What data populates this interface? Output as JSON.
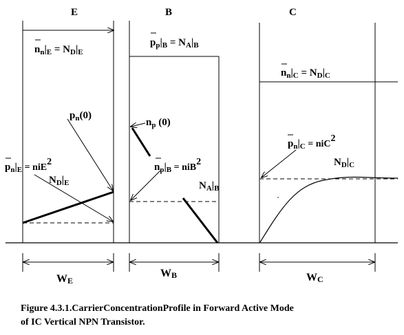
{
  "regions": {
    "emitter": "E",
    "base": "B",
    "collector": "C"
  },
  "labels": {
    "e_majority": {
      "lead": "n",
      "sub": "n",
      "eq": "|",
      "sub2": "E",
      "rhs": " = N",
      "rhs_sub": "D",
      "rhs_eq": "|",
      "rhs_sub2": "E"
    },
    "b_majority": {
      "lead": "p",
      "sub": "p",
      "eq": "|",
      "sub2": "B",
      "rhs": " = N",
      "rhs_sub": "A",
      "rhs_eq": "|",
      "rhs_sub2": "B"
    },
    "c_majority": {
      "lead": "n",
      "sub": "n",
      "eq": "|",
      "sub2": "C",
      "rhs": " = N",
      "rhs_sub": "D",
      "rhs_eq": "|",
      "rhs_sub2": "C"
    },
    "pn0": {
      "lead": "p",
      "sub": "n",
      "arg": "(0)"
    },
    "np0": {
      "lead": "n",
      "sub": "p",
      "arg": " (0)"
    },
    "e_minority_num": {
      "lead": "p",
      "sub": "n",
      "eq": "|",
      "sub2": "E",
      "rhs": " = niE",
      "sup": "2"
    },
    "e_minority_den": {
      "lead": "N",
      "sub": "D",
      "eq": "|",
      "sub2": "E"
    },
    "b_minority_num": {
      "lead": "n",
      "sub": "p",
      "eq": "|",
      "sub2": "B",
      "rhs": " = niB",
      "sup": "2"
    },
    "b_minority_den": {
      "lead": "N",
      "sub": "A",
      "eq": "|",
      "sub2": "B"
    },
    "c_minority_num": {
      "lead": "p",
      "sub": "n",
      "eq": "|",
      "sub2": "C",
      "rhs": " = niC",
      "sup": "2"
    },
    "c_minority_den": {
      "lead": "N",
      "sub": "D",
      "eq": "|",
      "sub2": "C"
    }
  },
  "widths": {
    "we": {
      "lead": "W",
      "sub": "E"
    },
    "wb": {
      "lead": "W",
      "sub": "B"
    },
    "wc": {
      "lead": "W",
      "sub": "C"
    }
  },
  "caption": {
    "line1": "Figure 4.3.1.CarrierConcentrationProfile in Forward Active Mode",
    "line2": "of IC Vertical NPN Transistor."
  }
}
